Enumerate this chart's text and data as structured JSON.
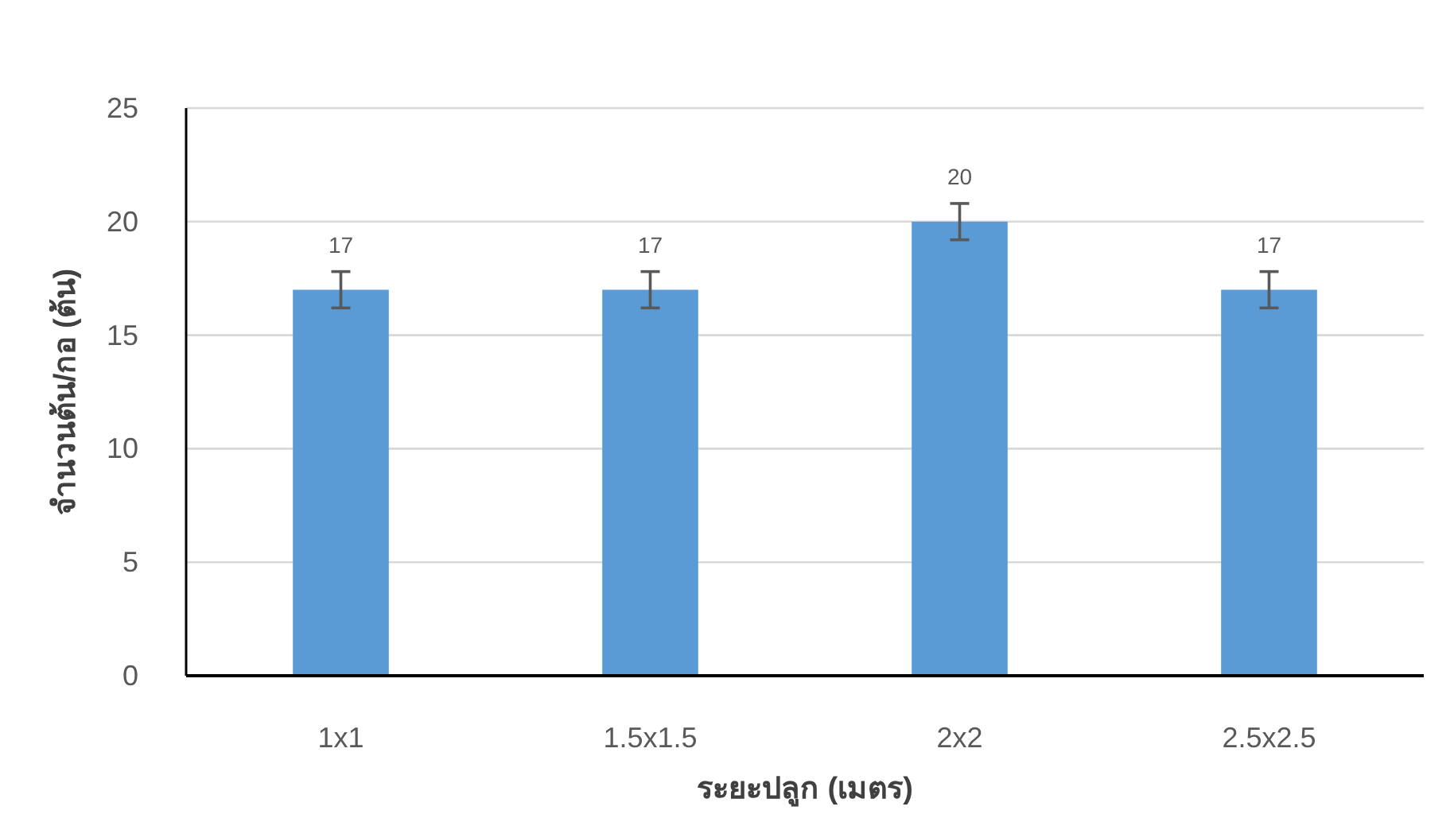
{
  "chart_data": {
    "type": "bar",
    "xlabel": "ระยะปลูก (เมตร)",
    "ylabel": "จำนวนต้น/กอ (ต้น)",
    "categories": [
      "1x1",
      "1.5x1.5",
      "2x2",
      "2.5x2.5"
    ],
    "values": [
      17,
      17,
      20,
      17
    ],
    "errors": [
      0.8,
      0.8,
      0.8,
      0.8
    ],
    "color": "#5b9bd5",
    "ylim": [
      0,
      25
    ],
    "yticks": [
      0,
      5,
      10,
      15,
      20,
      25
    ],
    "grid": "y",
    "data_labels": true
  }
}
